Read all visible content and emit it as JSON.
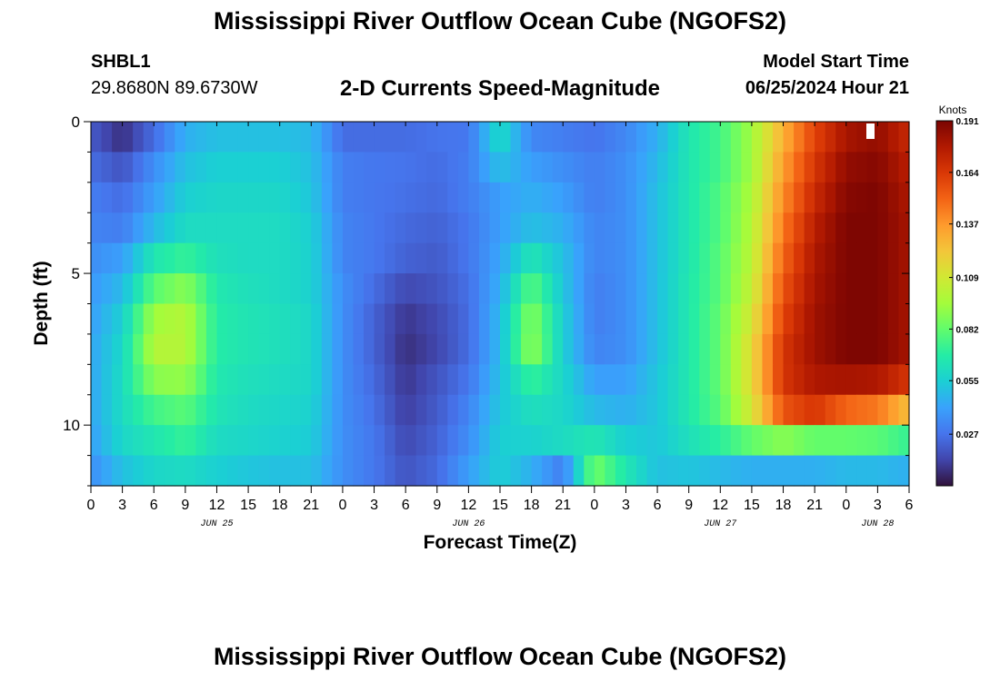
{
  "page": {
    "title": "Mississippi River Outflow Ocean Cube (NGOFS2)",
    "footer_title": "Mississippi River Outflow Ocean Cube (NGOFS2)",
    "station_id": "SHBL1",
    "station_coords": "29.8680N  89.6730W",
    "plot_heading": "2-D Currents Speed-Magnitude",
    "model_start_label": "Model Start Time",
    "model_start_value": "06/25/2024 Hour 21"
  },
  "chart_data": {
    "type": "heatmap",
    "title": "2-D Currents Speed-Magnitude",
    "xlabel": "Forecast Time(Z)",
    "ylabel": "Depth (ft)",
    "x_tick_labels": [
      "0",
      "3",
      "6",
      "9",
      "12",
      "15",
      "18",
      "21",
      "0",
      "3",
      "6",
      "9",
      "12",
      "15",
      "18",
      "21",
      "0",
      "3",
      "6",
      "9",
      "12",
      "15",
      "18",
      "21",
      "0",
      "3",
      "6"
    ],
    "x_range_hours": [
      0,
      78
    ],
    "date_labels": [
      {
        "label": "JUN 25",
        "hour": 12
      },
      {
        "label": "JUN 26",
        "hour": 36
      },
      {
        "label": "JUN 27",
        "hour": 60
      },
      {
        "label": "JUN 28",
        "hour": 75
      }
    ],
    "y_tick_labels": [
      "0",
      "5",
      "10"
    ],
    "ylim": [
      0,
      12
    ],
    "y_reversed": true,
    "colorbar": {
      "title": "Knots",
      "ticks": [
        "0.191",
        "0.164",
        "0.137",
        "0.109",
        "0.082",
        "0.055",
        "0.027"
      ],
      "min": 0,
      "max": 0.191
    },
    "depth_layers_ft": [
      0.5,
      1.5,
      2.5,
      3.5,
      4.5,
      5.5,
      6.5,
      7.5,
      8.5,
      9.5,
      10.5,
      11.5
    ],
    "time_hours": [
      0,
      3,
      6,
      9,
      12,
      15,
      18,
      21,
      24,
      27,
      30,
      33,
      36,
      39,
      42,
      45,
      48,
      51,
      54,
      57,
      60,
      63,
      66,
      69,
      72,
      75,
      78
    ],
    "speed_knots": [
      [
        0.02,
        0.008,
        0.025,
        0.045,
        0.05,
        0.05,
        0.05,
        0.048,
        0.025,
        0.025,
        0.025,
        0.027,
        0.028,
        0.06,
        0.033,
        0.03,
        0.027,
        0.033,
        0.045,
        0.065,
        0.075,
        0.095,
        0.13,
        0.16,
        0.18,
        0.185,
        0.17
      ],
      [
        0.025,
        0.018,
        0.035,
        0.05,
        0.055,
        0.055,
        0.055,
        0.05,
        0.03,
        0.028,
        0.027,
        0.025,
        0.03,
        0.05,
        0.04,
        0.035,
        0.03,
        0.035,
        0.048,
        0.065,
        0.075,
        0.095,
        0.135,
        0.165,
        0.185,
        0.188,
        0.175
      ],
      [
        0.03,
        0.025,
        0.04,
        0.055,
        0.058,
        0.058,
        0.058,
        0.052,
        0.03,
        0.028,
        0.026,
        0.024,
        0.03,
        0.04,
        0.045,
        0.04,
        0.03,
        0.035,
        0.05,
        0.065,
        0.078,
        0.098,
        0.14,
        0.17,
        0.188,
        0.19,
        0.178
      ],
      [
        0.032,
        0.03,
        0.048,
        0.06,
        0.06,
        0.06,
        0.06,
        0.055,
        0.032,
        0.028,
        0.024,
        0.022,
        0.028,
        0.04,
        0.05,
        0.045,
        0.032,
        0.035,
        0.05,
        0.065,
        0.078,
        0.1,
        0.145,
        0.175,
        0.19,
        0.19,
        0.18
      ],
      [
        0.035,
        0.04,
        0.065,
        0.072,
        0.062,
        0.06,
        0.06,
        0.056,
        0.032,
        0.028,
        0.022,
        0.02,
        0.028,
        0.042,
        0.065,
        0.05,
        0.032,
        0.035,
        0.05,
        0.065,
        0.08,
        0.102,
        0.15,
        0.178,
        0.19,
        0.19,
        0.18
      ],
      [
        0.038,
        0.048,
        0.08,
        0.09,
        0.066,
        0.062,
        0.06,
        0.056,
        0.035,
        0.025,
        0.015,
        0.018,
        0.026,
        0.045,
        0.08,
        0.052,
        0.03,
        0.035,
        0.05,
        0.066,
        0.08,
        0.105,
        0.155,
        0.18,
        0.19,
        0.19,
        0.18
      ],
      [
        0.04,
        0.055,
        0.095,
        0.1,
        0.068,
        0.064,
        0.062,
        0.058,
        0.035,
        0.022,
        0.01,
        0.015,
        0.025,
        0.048,
        0.09,
        0.055,
        0.03,
        0.035,
        0.05,
        0.066,
        0.082,
        0.11,
        0.16,
        0.182,
        0.19,
        0.19,
        0.18
      ],
      [
        0.042,
        0.058,
        0.1,
        0.1,
        0.068,
        0.064,
        0.062,
        0.058,
        0.035,
        0.022,
        0.008,
        0.014,
        0.025,
        0.048,
        0.092,
        0.055,
        0.032,
        0.035,
        0.05,
        0.066,
        0.082,
        0.115,
        0.165,
        0.182,
        0.19,
        0.19,
        0.18
      ],
      [
        0.042,
        0.06,
        0.09,
        0.092,
        0.066,
        0.062,
        0.06,
        0.058,
        0.035,
        0.024,
        0.01,
        0.018,
        0.028,
        0.05,
        0.072,
        0.058,
        0.04,
        0.04,
        0.052,
        0.066,
        0.082,
        0.115,
        0.165,
        0.178,
        0.18,
        0.178,
        0.165
      ],
      [
        0.042,
        0.06,
        0.075,
        0.08,
        0.064,
        0.06,
        0.058,
        0.056,
        0.035,
        0.026,
        0.012,
        0.02,
        0.032,
        0.052,
        0.062,
        0.058,
        0.048,
        0.045,
        0.052,
        0.066,
        0.08,
        0.11,
        0.155,
        0.165,
        0.15,
        0.145,
        0.125
      ],
      [
        0.04,
        0.058,
        0.065,
        0.072,
        0.06,
        0.058,
        0.056,
        0.054,
        0.035,
        0.028,
        0.015,
        0.022,
        0.035,
        0.055,
        0.056,
        0.06,
        0.065,
        0.055,
        0.052,
        0.062,
        0.07,
        0.082,
        0.09,
        0.082,
        0.082,
        0.08,
        0.072
      ],
      [
        0.035,
        0.05,
        0.058,
        0.06,
        0.055,
        0.052,
        0.05,
        0.05,
        0.035,
        0.028,
        0.018,
        0.024,
        0.04,
        0.055,
        0.045,
        0.03,
        0.085,
        0.065,
        0.05,
        0.052,
        0.048,
        0.045,
        0.045,
        0.045,
        0.048,
        0.048,
        0.045
      ]
    ],
    "speed_colorscale": [
      "#30123b",
      "#4145ab",
      "#4675ed",
      "#39a2fc",
      "#1bcfd4",
      "#24eca6",
      "#61fc6c",
      "#a4fc3b",
      "#d1e834",
      "#f3c63a",
      "#fe9b2d",
      "#f36315",
      "#d93806",
      "#b11901",
      "#7a0402"
    ]
  }
}
